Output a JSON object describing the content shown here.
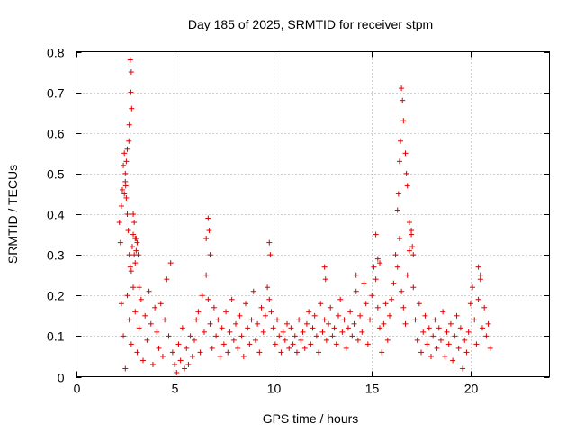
{
  "chart_data": {
    "type": "scatter",
    "title": "Day 185 of 2025, SRMTID for receiver stpm",
    "xlabel": "GPS time / hours",
    "ylabel": "SRMTID / TECUs",
    "xlim": [
      0,
      24
    ],
    "ylim": [
      0,
      0.8
    ],
    "xticks": [
      0,
      5,
      10,
      15,
      20
    ],
    "yticks": [
      0,
      0.1,
      0.2,
      0.3,
      0.4,
      0.5,
      0.6,
      0.7,
      0.8
    ],
    "xtick_labels": [
      "0",
      "5",
      "10",
      "15",
      "20"
    ],
    "ytick_labels": [
      "0",
      "0.1",
      "0.2",
      "0.3",
      "0.4",
      "0.5",
      "0.6",
      "0.7",
      "0.8"
    ],
    "grid": true,
    "marker": "plus",
    "color": "#e00000",
    "series": [
      {
        "name": "stpm",
        "x": [
          2.2,
          2.25,
          2.3,
          2.35,
          2.4,
          2.45,
          2.5,
          2.55,
          2.6,
          2.65,
          2.7,
          2.75,
          2.8,
          2.85,
          2.9,
          2.95,
          3.0,
          3.05,
          3.1,
          3.15,
          3.2,
          2.3,
          2.4,
          2.5,
          2.6,
          2.7,
          2.8,
          2.9,
          3.0,
          3.1,
          3.2,
          3.3,
          3.4,
          3.5,
          3.6,
          3.7,
          3.8,
          3.9,
          4.0,
          4.1,
          4.2,
          4.3,
          4.4,
          4.5,
          4.6,
          4.7,
          4.8,
          4.9,
          5.0,
          5.1,
          5.2,
          5.3,
          5.4,
          5.5,
          5.6,
          5.7,
          5.8,
          5.9,
          6.0,
          6.1,
          6.2,
          6.3,
          6.4,
          6.5,
          6.6,
          6.7,
          6.8,
          6.9,
          7.0,
          7.1,
          7.2,
          7.3,
          7.4,
          7.5,
          7.6,
          7.7,
          7.8,
          7.9,
          8.0,
          8.1,
          8.2,
          8.3,
          8.4,
          8.5,
          8.6,
          8.7,
          8.8,
          8.9,
          9.0,
          9.1,
          9.2,
          9.3,
          9.4,
          9.5,
          9.6,
          9.7,
          9.8,
          9.9,
          10.0,
          10.1,
          10.2,
          10.3,
          10.4,
          10.5,
          10.6,
          10.7,
          10.8,
          10.9,
          11.0,
          11.1,
          11.2,
          11.3,
          11.4,
          11.5,
          11.6,
          11.7,
          11.8,
          11.9,
          12.0,
          12.1,
          12.2,
          12.3,
          12.4,
          12.5,
          12.6,
          12.7,
          12.8,
          12.9,
          13.0,
          13.1,
          13.2,
          13.3,
          13.4,
          13.5,
          13.6,
          13.7,
          13.8,
          13.9,
          14.0,
          14.1,
          14.2,
          14.3,
          14.4,
          14.5,
          14.6,
          14.7,
          14.8,
          14.9,
          15.0,
          15.1,
          15.2,
          15.3,
          15.4,
          15.5,
          15.6,
          15.7,
          15.8,
          15.9,
          16.0,
          16.1,
          16.2,
          16.3,
          16.4,
          16.5,
          16.6,
          16.7,
          16.8,
          16.9,
          17.0,
          17.1,
          17.2,
          17.3,
          17.4,
          17.5,
          17.6,
          17.7,
          17.8,
          17.9,
          18.0,
          18.1,
          18.2,
          18.3,
          18.4,
          18.5,
          18.6,
          18.7,
          18.8,
          18.9,
          19.0,
          19.1,
          19.2,
          19.3,
          19.4,
          19.5,
          19.6,
          19.7,
          19.8,
          19.9,
          20.0,
          20.1,
          20.2,
          20.3,
          20.4,
          20.5,
          20.6,
          20.7,
          20.8,
          20.9,
          21.0,
          2.75,
          2.8,
          2.78,
          2.82,
          2.7,
          2.68,
          2.6,
          2.55,
          2.5,
          2.52,
          2.45,
          2.9,
          2.95,
          3.0,
          3.05,
          16.5,
          16.55,
          16.6,
          16.45,
          16.4,
          16.7,
          16.75,
          16.8,
          16.35,
          16.3,
          16.9,
          17.0,
          17.05,
          17.1,
          6.7,
          6.75,
          6.8,
          6.6,
          9.8,
          9.85,
          12.6,
          12.65,
          14.2,
          15.2,
          15.3,
          15.4,
          20.4,
          20.5
        ],
        "y": [
          0.38,
          0.33,
          0.42,
          0.46,
          0.52,
          0.55,
          0.48,
          0.44,
          0.4,
          0.36,
          0.3,
          0.27,
          0.26,
          0.32,
          0.35,
          0.3,
          0.28,
          0.34,
          0.33,
          0.3,
          0.22,
          0.18,
          0.1,
          0.02,
          0.2,
          0.14,
          0.08,
          0.22,
          0.16,
          0.06,
          0.12,
          0.19,
          0.04,
          0.15,
          0.09,
          0.21,
          0.13,
          0.03,
          0.17,
          0.11,
          0.07,
          0.18,
          0.05,
          0.14,
          0.24,
          0.1,
          0.28,
          0.06,
          0.03,
          0.01,
          0.08,
          0.04,
          0.12,
          0.02,
          0.07,
          0.03,
          0.1,
          0.05,
          0.09,
          0.14,
          0.16,
          0.06,
          0.2,
          0.11,
          0.25,
          0.19,
          0.13,
          0.07,
          0.17,
          0.1,
          0.14,
          0.05,
          0.12,
          0.08,
          0.16,
          0.06,
          0.11,
          0.19,
          0.09,
          0.13,
          0.07,
          0.15,
          0.1,
          0.05,
          0.18,
          0.12,
          0.08,
          0.14,
          0.21,
          0.09,
          0.13,
          0.06,
          0.17,
          0.11,
          0.15,
          0.22,
          0.19,
          0.16,
          0.12,
          0.08,
          0.14,
          0.1,
          0.06,
          0.11,
          0.09,
          0.13,
          0.07,
          0.12,
          0.08,
          0.1,
          0.06,
          0.14,
          0.09,
          0.11,
          0.07,
          0.13,
          0.16,
          0.08,
          0.12,
          0.15,
          0.1,
          0.06,
          0.18,
          0.11,
          0.14,
          0.09,
          0.13,
          0.17,
          0.1,
          0.12,
          0.08,
          0.15,
          0.19,
          0.11,
          0.14,
          0.07,
          0.12,
          0.16,
          0.1,
          0.13,
          0.21,
          0.09,
          0.15,
          0.11,
          0.23,
          0.18,
          0.08,
          0.14,
          0.2,
          0.27,
          0.24,
          0.17,
          0.12,
          0.06,
          0.13,
          0.18,
          0.09,
          0.15,
          0.19,
          0.23,
          0.3,
          0.27,
          0.34,
          0.21,
          0.17,
          0.13,
          0.25,
          0.31,
          0.36,
          0.22,
          0.14,
          0.09,
          0.18,
          0.06,
          0.11,
          0.15,
          0.08,
          0.12,
          0.05,
          0.1,
          0.14,
          0.07,
          0.12,
          0.09,
          0.16,
          0.05,
          0.11,
          0.08,
          0.13,
          0.04,
          0.1,
          0.15,
          0.07,
          0.12,
          0.02,
          0.09,
          0.06,
          0.11,
          0.18,
          0.22,
          0.14,
          0.08,
          0.19,
          0.25,
          0.12,
          0.17,
          0.1,
          0.13,
          0.07,
          0.78,
          0.75,
          0.7,
          0.66,
          0.62,
          0.58,
          0.56,
          0.53,
          0.5,
          0.47,
          0.45,
          0.4,
          0.38,
          0.34,
          0.31,
          0.71,
          0.68,
          0.63,
          0.58,
          0.53,
          0.55,
          0.5,
          0.47,
          0.45,
          0.41,
          0.38,
          0.35,
          0.32,
          0.3,
          0.39,
          0.36,
          0.3,
          0.34,
          0.33,
          0.3,
          0.27,
          0.24,
          0.25,
          0.35,
          0.29,
          0.28,
          0.27,
          0.24
        ]
      }
    ]
  }
}
